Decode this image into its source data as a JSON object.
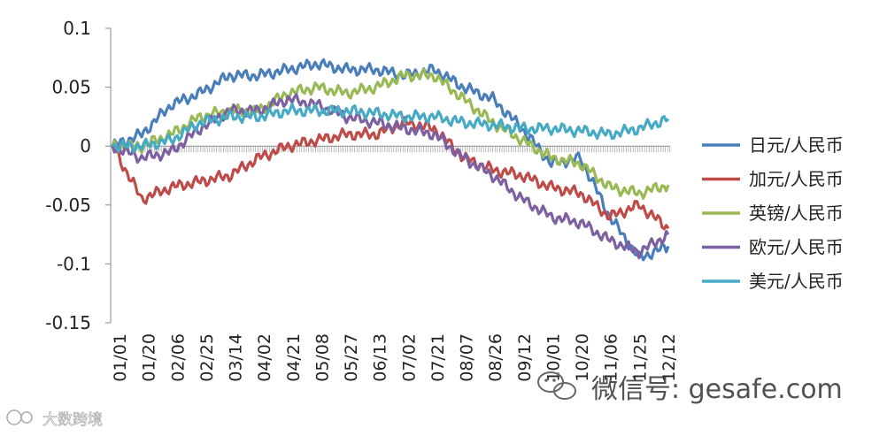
{
  "chart_data": {
    "type": "line",
    "x_ticks": [
      "01/01",
      "01/20",
      "02/06",
      "02/25",
      "03/14",
      "04/02",
      "04/21",
      "05/08",
      "05/27",
      "06/13",
      "07/02",
      "07/21",
      "08/07",
      "08/26",
      "09/12",
      "10/01",
      "10/20",
      "11/06",
      "11/25",
      "12/12"
    ],
    "x": [
      "01/01",
      "01/20",
      "02/06",
      "02/25",
      "03/14",
      "04/02",
      "04/21",
      "05/08",
      "05/27",
      "06/13",
      "07/02",
      "07/21",
      "08/07",
      "08/26",
      "09/12",
      "10/01",
      "10/20",
      "11/06",
      "11/25",
      "12/12"
    ],
    "ylim": [
      -0.15,
      0.1
    ],
    "y_ticks": [
      0.1,
      0.05,
      0,
      -0.05,
      -0.1,
      -0.15
    ],
    "y_tick_labels": [
      "0.1",
      "0.05",
      "0",
      "-0.05",
      "-0.1",
      "-0.15"
    ],
    "legend_position": "right",
    "series": [
      {
        "name": "日元/人民币",
        "color": "#4a7ebb",
        "values": [
          0,
          0.01,
          0.035,
          0.045,
          0.06,
          0.06,
          0.065,
          0.07,
          0.065,
          0.065,
          0.06,
          0.065,
          0.05,
          0.04,
          0.015,
          -0.015,
          -0.01,
          -0.06,
          -0.095,
          -0.085
        ]
      },
      {
        "name": "加元/人民币",
        "color": "#be4b48",
        "values": [
          0,
          -0.045,
          -0.035,
          -0.03,
          -0.025,
          -0.01,
          0,
          0.005,
          0.01,
          0.01,
          0.02,
          0.015,
          -0.01,
          -0.02,
          -0.025,
          -0.035,
          -0.04,
          -0.06,
          -0.05,
          -0.07
        ]
      },
      {
        "name": "英镑/人民币",
        "color": "#98b954",
        "values": [
          0,
          0,
          0.01,
          0.025,
          0.03,
          0.03,
          0.045,
          0.05,
          0.045,
          0.05,
          0.06,
          0.06,
          0.04,
          0.02,
          0.005,
          -0.01,
          -0.015,
          -0.035,
          -0.04,
          -0.033
        ]
      },
      {
        "name": "欧元/人民币",
        "color": "#7d60a0",
        "values": [
          0,
          -0.01,
          -0.005,
          0.015,
          0.03,
          0.03,
          0.04,
          0.035,
          0.025,
          0.02,
          0.015,
          0.01,
          -0.01,
          -0.025,
          -0.045,
          -0.06,
          -0.065,
          -0.08,
          -0.09,
          -0.075
        ]
      },
      {
        "name": "美元/人民币",
        "color": "#46aac5",
        "values": [
          0,
          0,
          0.005,
          0.02,
          0.025,
          0.025,
          0.03,
          0.03,
          0.03,
          0.028,
          0.025,
          0.025,
          0.02,
          0.018,
          0.015,
          0.015,
          0.013,
          0.01,
          0.015,
          0.023
        ]
      }
    ]
  },
  "watermark": {
    "brand_right": "微信号: gesafe.com",
    "brand_left": "大数跨境"
  }
}
